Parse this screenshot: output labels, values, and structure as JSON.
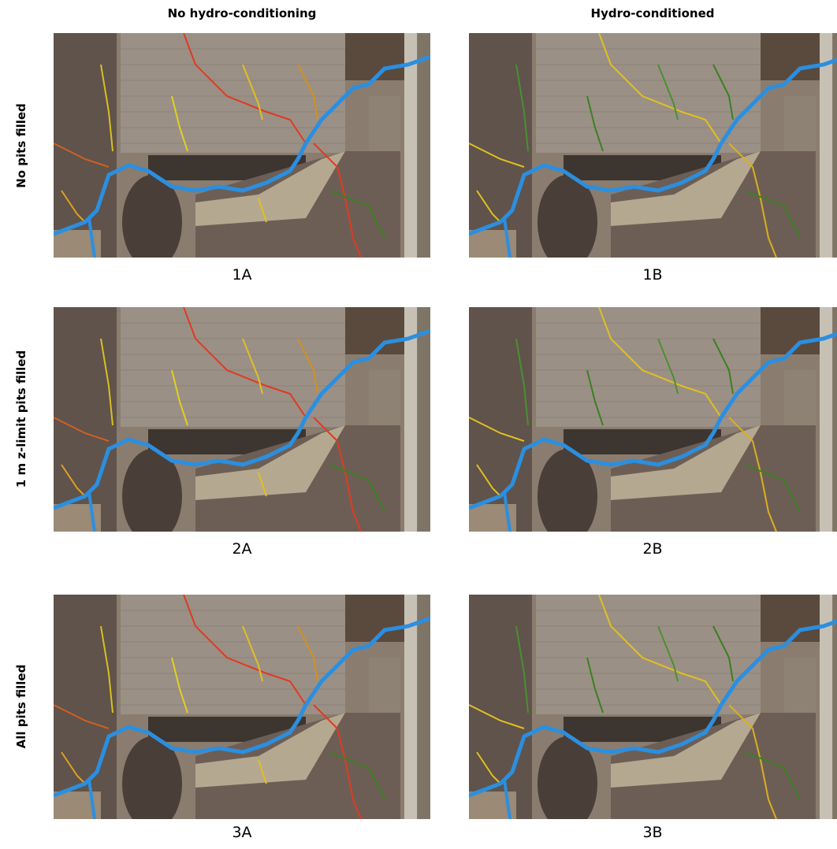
{
  "columns": [
    "No hydro-conditioning",
    "Hydro-conditioned"
  ],
  "rows": [
    "No pits filled",
    "1 m z-limit pits filled",
    "All pits filled"
  ],
  "panels": [
    [
      "1A",
      "1B"
    ],
    [
      "2A",
      "2B"
    ],
    [
      "3A",
      "3B"
    ]
  ]
}
